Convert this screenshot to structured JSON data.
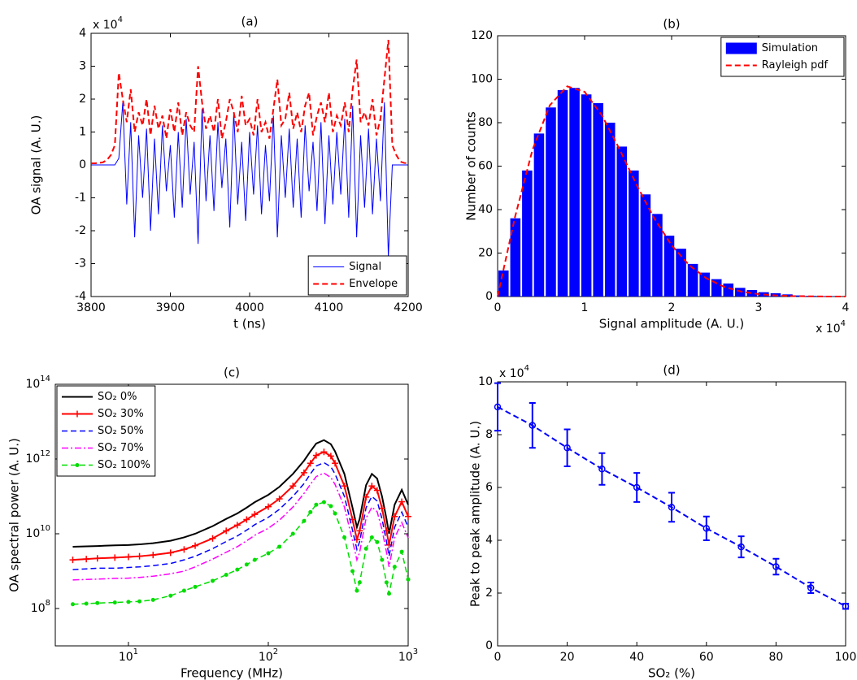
{
  "chart_data": [
    {
      "type": "line",
      "title": "(a)",
      "xlabel": "t (ns)",
      "ylabel": "OA signal (A. U.)",
      "y_multiplier": {
        "label": "x 10",
        "exponent": "4"
      },
      "xlim": [
        3800,
        4200
      ],
      "ylim": [
        -4,
        4
      ],
      "xticks": [
        3800,
        3900,
        4000,
        4100,
        4200
      ],
      "yticks": [
        -4,
        -3,
        -2,
        -1,
        0,
        1,
        2,
        3,
        4
      ],
      "legend": "lower right",
      "x": [
        3800,
        3805,
        3810,
        3815,
        3820,
        3825,
        3830,
        3835,
        3840,
        3845,
        3850,
        3855,
        3860,
        3865,
        3870,
        3875,
        3880,
        3885,
        3890,
        3895,
        3900,
        3905,
        3910,
        3915,
        3920,
        3925,
        3930,
        3935,
        3940,
        3945,
        3950,
        3955,
        3960,
        3965,
        3970,
        3975,
        3980,
        3985,
        3990,
        3995,
        4000,
        4005,
        4010,
        4015,
        4020,
        4025,
        4030,
        4035,
        4040,
        4045,
        4050,
        4055,
        4060,
        4065,
        4070,
        4075,
        4080,
        4085,
        4090,
        4095,
        4100,
        4105,
        4110,
        4115,
        4120,
        4125,
        4130,
        4135,
        4140,
        4145,
        4150,
        4155,
        4160,
        4165,
        4170,
        4175,
        4180,
        4185,
        4190,
        4195,
        4200
      ],
      "series": [
        {
          "name": "Signal",
          "color": "#0000ff",
          "style": "solid",
          "width": 1,
          "values": [
            0,
            0,
            0,
            0,
            0,
            0,
            0,
            0.2,
            1.9,
            -1.2,
            1.3,
            -2.2,
            0.9,
            -1.0,
            1.1,
            -2.0,
            0.8,
            -1.5,
            1.2,
            -0.8,
            0.6,
            -1.6,
            1.0,
            -1.3,
            1.4,
            -0.9,
            0.7,
            -2.4,
            1.7,
            -1.1,
            0.9,
            -1.4,
            1.3,
            -0.7,
            0.8,
            -1.9,
            1.6,
            -1.2,
            0.7,
            -1.7,
            1.0,
            -0.9,
            1.2,
            -1.5,
            0.6,
            -1.1,
            1.5,
            -2.2,
            0.9,
            -1.0,
            1.1,
            -1.3,
            0.8,
            -1.6,
            1.2,
            -0.8,
            0.7,
            -1.4,
            1.3,
            -1.8,
            0.9,
            -1.2,
            1.0,
            -0.9,
            1.4,
            -1.6,
            1.8,
            -2.2,
            0.9,
            -1.3,
            1.1,
            -1.5,
            0.8,
            -1.1,
            1.9,
            -2.8,
            0,
            0,
            0,
            0,
            0
          ]
        },
        {
          "name": "Envelope",
          "color": "#ff0000",
          "style": "dashed",
          "width": 2,
          "values": [
            0.05,
            0.05,
            0.06,
            0.08,
            0.15,
            0.3,
            0.6,
            2.8,
            2.0,
            1.3,
            2.3,
            1.0,
            1.6,
            1.2,
            2.0,
            0.9,
            1.8,
            1.1,
            1.5,
            0.8,
            1.7,
            1.0,
            1.9,
            0.9,
            1.6,
            1.2,
            1.0,
            3.0,
            1.9,
            1.1,
            1.5,
            1.0,
            2.0,
            0.8,
            1.3,
            2.0,
            1.6,
            1.0,
            2.1,
            1.2,
            1.4,
            0.9,
            2.0,
            1.0,
            1.3,
            0.8,
            1.7,
            2.6,
            1.2,
            1.4,
            2.2,
            1.1,
            1.6,
            1.0,
            1.8,
            2.2,
            0.9,
            1.5,
            1.9,
            1.3,
            2.2,
            1.0,
            1.5,
            1.2,
            1.9,
            1.0,
            2.3,
            3.2,
            1.3,
            1.6,
            1.2,
            2.0,
            0.9,
            1.4,
            2.6,
            3.8,
            0.6,
            0.3,
            0.1,
            0.06,
            0.05
          ]
        }
      ]
    },
    {
      "type": "histogram",
      "title": "(b)",
      "xlabel": "Signal amplitude (A. U.)",
      "ylabel": "Number of counts",
      "x_multiplier": {
        "label": "x 10",
        "exponent": "4"
      },
      "xlim": [
        0,
        4
      ],
      "ylim": [
        0,
        120
      ],
      "xticks": [
        0,
        1,
        2,
        3,
        4
      ],
      "yticks": [
        0,
        20,
        40,
        60,
        80,
        100,
        120
      ],
      "legend": "upper right",
      "bins": [
        0,
        0.136,
        0.272,
        0.408,
        0.544,
        0.68,
        0.816,
        0.952,
        1.088,
        1.224,
        1.36,
        1.496,
        1.632,
        1.768,
        1.904,
        2.04,
        2.176,
        2.312,
        2.448,
        2.584,
        2.72,
        2.856,
        2.992,
        3.128,
        3.264,
        3.4,
        3.536,
        3.672,
        3.808,
        3.944
      ],
      "series": [
        {
          "name": "Simulation",
          "color": "#0000ff",
          "values": [
            12,
            36,
            58,
            75,
            87,
            95,
            96,
            93,
            89,
            80,
            69,
            58,
            47,
            38,
            28,
            22,
            15,
            11,
            8,
            6,
            4,
            3,
            2,
            1.5,
            1,
            0.5,
            0.3,
            0.2,
            0.1
          ]
        },
        {
          "name": "Rayleigh pdf",
          "color": "#ff0000",
          "style": "dashed",
          "width": 2,
          "x": [
            0,
            0.2,
            0.4,
            0.6,
            0.8,
            1.0,
            1.2,
            1.4,
            1.6,
            1.8,
            2.0,
            2.2,
            2.4,
            2.6,
            2.8,
            3.0,
            3.2,
            3.4,
            3.6,
            3.8,
            4.0
          ],
          "values": [
            0,
            36.6,
            67.4,
            88.0,
            96.7,
            94.2,
            83.3,
            67.9,
            51.2,
            36.0,
            23.6,
            14.5,
            8.4,
            4.5,
            2.3,
            1.1,
            0.5,
            0.2,
            0.1,
            0,
            0
          ]
        }
      ]
    },
    {
      "type": "line",
      "title": "(c)",
      "xlabel": "Frequency (MHz)",
      "ylabel": "OA spectral power (A. U.)",
      "xscale": "log",
      "yscale": "log",
      "xlim": [
        3,
        1000
      ],
      "ylim": [
        10000000,
        100000000000000
      ],
      "xticks": [
        {
          "value": 10,
          "label": "10",
          "exponent": "1"
        },
        {
          "value": 100,
          "label": "10",
          "exponent": "2"
        },
        {
          "value": 1000,
          "label": "10",
          "exponent": "3"
        }
      ],
      "yticks": [
        {
          "value": 100000000,
          "label": "10",
          "exponent": "8"
        },
        {
          "value": 10000000000,
          "label": "10",
          "exponent": "10"
        },
        {
          "value": 1000000000000,
          "label": "10",
          "exponent": "12"
        },
        {
          "value": 100000000000000,
          "label": "10",
          "exponent": "14"
        }
      ],
      "legend": "upper left",
      "x": [
        4,
        5,
        6,
        8,
        10,
        12,
        15,
        20,
        25,
        30,
        40,
        50,
        60,
        70,
        80,
        100,
        120,
        150,
        180,
        200,
        220,
        250,
        280,
        300,
        350,
        400,
        430,
        450,
        500,
        550,
        600,
        650,
        700,
        730,
        800,
        900,
        1000
      ],
      "series": [
        {
          "name": "SO₂ 0%",
          "color": "#000000",
          "style": "solid",
          "width": 2,
          "values": [
            4500000000.0,
            4600000000.0,
            4700000000.0,
            4900000000.0,
            5000000000.0,
            5200000000.0,
            5600000000.0,
            6500000000.0,
            8000000000.0,
            10000000000.0,
            16000000000.0,
            25000000000.0,
            35000000000.0,
            50000000000.0,
            70000000000.0,
            110000000000.0,
            180000000000.0,
            400000000000.0,
            900000000000.0,
            1600000000000.0,
            2600000000000.0,
            3200000000000.0,
            2500000000000.0,
            1600000000000.0,
            400000000000.0,
            50000000000.0,
            15000000000.0,
            25000000000.0,
            200000000000.0,
            400000000000.0,
            300000000000.0,
            100000000000.0,
            25000000000.0,
            10000000000.0,
            60000000000.0,
            150000000000.0,
            60000000000.0
          ]
        },
        {
          "name": "SO₂ 30%",
          "color": "#ff0000",
          "style": "solid",
          "width": 2,
          "marker": "plus",
          "values": [
            2000000000.0,
            2100000000.0,
            2200000000.0,
            2300000000.0,
            2400000000.0,
            2500000000.0,
            2700000000.0,
            3100000000.0,
            3800000000.0,
            4800000000.0,
            7500000000.0,
            12000000000.0,
            17000000000.0,
            24000000000.0,
            33000000000.0,
            53000000000.0,
            86000000000.0,
            190000000000.0,
            430000000000.0,
            770000000000.0,
            1250000000000.0,
            1550000000000.0,
            1200000000000.0,
            770000000000.0,
            190000000000.0,
            24000000000.0,
            7000000000.0,
            12000000000.0,
            96000000000.0,
            190000000000.0,
            145000000000.0,
            48000000000.0,
            12000000000.0,
            5000000000.0,
            29000000000.0,
            72000000000.0,
            29000000000.0
          ]
        },
        {
          "name": "SO₂ 50%",
          "color": "#0000ff",
          "style": "dashed",
          "width": 1.5,
          "values": [
            1100000000.0,
            1150000000.0,
            1200000000.0,
            1200000000.0,
            1250000000.0,
            1300000000.0,
            1400000000.0,
            1600000000.0,
            2000000000.0,
            2500000000.0,
            4000000000.0,
            6200000000.0,
            8700000000.0,
            12500000000.0,
            17500000000.0,
            27500000000.0,
            45000000000.0,
            100000000000.0,
            220000000000.0,
            400000000000.0,
            650000000000.0,
            800000000000.0,
            620000000000.0,
            400000000000.0,
            100000000000.0,
            12500000000.0,
            3800000000.0,
            6200000000.0,
            50000000000.0,
            100000000000.0,
            75000000000.0,
            25000000000.0,
            6200000000.0,
            2500000000.0,
            15000000000.0,
            38000000000.0,
            15000000000.0
          ]
        },
        {
          "name": "SO₂ 70%",
          "color": "#ff00ff",
          "style": "dashdot",
          "width": 1.5,
          "values": [
            580000000.0,
            600000000.0,
            610000000.0,
            640000000.0,
            650000000.0,
            680000000.0,
            730000000.0,
            850000000.0,
            1000000000.0,
            1300000000.0,
            2100000000.0,
            3200000000.0,
            4500000000.0,
            6500000000.0,
            9100000000.0,
            14000000000.0,
            23000000000.0,
            52000000000.0,
            120000000000.0,
            210000000000.0,
            340000000000.0,
            420000000000.0,
            320000000000.0,
            210000000000.0,
            52000000000.0,
            6500000000.0,
            2000000000.0,
            3200000000.0,
            26000000000.0,
            52000000000.0,
            39000000000.0,
            13000000000.0,
            3200000000.0,
            1300000000.0,
            7800000000.0,
            20000000000.0,
            7800000000.0
          ]
        },
        {
          "name": "SO₂ 100%",
          "color": "#00dd00",
          "style": "dashed",
          "width": 1.5,
          "marker": "dot",
          "values": [
            130000000.0,
            135000000.0,
            140000000.0,
            145000000.0,
            150000000.0,
            155000000.0,
            170000000.0,
            220000000.0,
            300000000.0,
            380000000.0,
            550000000.0,
            800000000.0,
            1100000000.0,
            1500000000.0,
            2000000000.0,
            3000000000.0,
            4500000000.0,
            10000000000.0,
            22000000000.0,
            38000000000.0,
            60000000000.0,
            70000000000.0,
            55000000000.0,
            35000000000.0,
            8000000000.0,
            1000000000.0,
            300000000.0,
            500000000.0,
            4000000000.0,
            8000000000.0,
            6000000000.0,
            2000000000.0,
            500000000.0,
            250000000.0,
            1300000000.0,
            3300000000.0,
            600000000.0
          ]
        }
      ]
    },
    {
      "type": "errorbar",
      "title": "(d)",
      "xlabel": "SO₂ (%)",
      "ylabel": "Peak to peak amplitude (A. U.)",
      "y_multiplier": {
        "label": "x 10",
        "exponent": "4"
      },
      "xlim": [
        0,
        100
      ],
      "ylim": [
        0,
        10
      ],
      "xticks": [
        0,
        20,
        40,
        60,
        80,
        100
      ],
      "yticks": [
        0,
        2,
        4,
        6,
        8,
        10
      ],
      "x": [
        0,
        10,
        20,
        30,
        40,
        50,
        60,
        70,
        80,
        90,
        100
      ],
      "series": [
        {
          "color": "#0000ff",
          "style": "dashed",
          "width": 2,
          "marker": "circle",
          "values": [
            9.05,
            8.35,
            7.5,
            6.7,
            6.0,
            5.25,
            4.45,
            3.75,
            3.0,
            2.2,
            1.5
          ],
          "errors": [
            0.9,
            0.85,
            0.7,
            0.6,
            0.55,
            0.55,
            0.45,
            0.4,
            0.3,
            0.2,
            0.1
          ]
        }
      ]
    }
  ]
}
